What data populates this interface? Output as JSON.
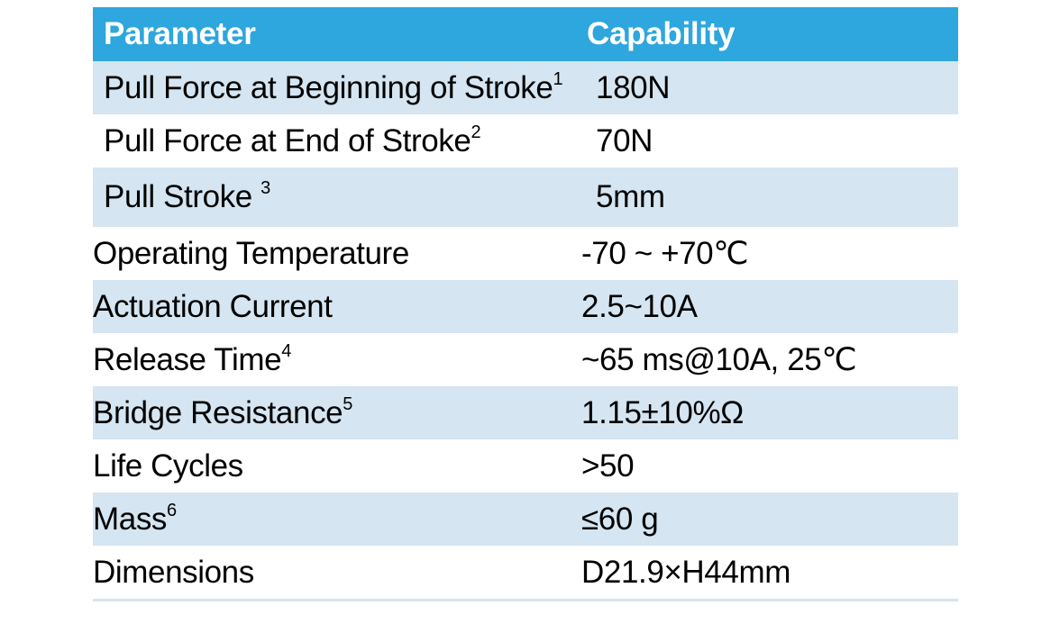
{
  "table": {
    "header": {
      "parameter": "Parameter",
      "capability": "Capability"
    },
    "rows": [
      {
        "param": "Pull Force at Beginning of Stroke",
        "note": "1",
        "value": "180N"
      },
      {
        "param": "Pull Force at End of Stroke",
        "note": "2",
        "value": "70N"
      },
      {
        "param": "Pull Stroke ",
        "note": "3",
        "value": "5mm"
      },
      {
        "param": "Operating Temperature",
        "note": "",
        "value": "-70 ~ +70℃"
      },
      {
        "param": "Actuation Current",
        "note": "",
        "value": "2.5~10A"
      },
      {
        "param": "Release Time",
        "note": "4",
        "value": "~65 ms@10A, 25℃"
      },
      {
        "param": "Bridge Resistance",
        "note": "5",
        "value": "1.15±10%Ω"
      },
      {
        "param": "Life Cycles",
        "note": "",
        "value": ">50"
      },
      {
        "param": "Mass",
        "note": "6",
        "value": "≤60 g"
      },
      {
        "param": "Dimensions",
        "note": "",
        "value": "D21.9×H44mm"
      }
    ]
  },
  "colors": {
    "header_bg": "#2ea6de",
    "header_text": "#ffffff",
    "stripe_bg": "#d5e5f1",
    "body_text": "#000000"
  }
}
